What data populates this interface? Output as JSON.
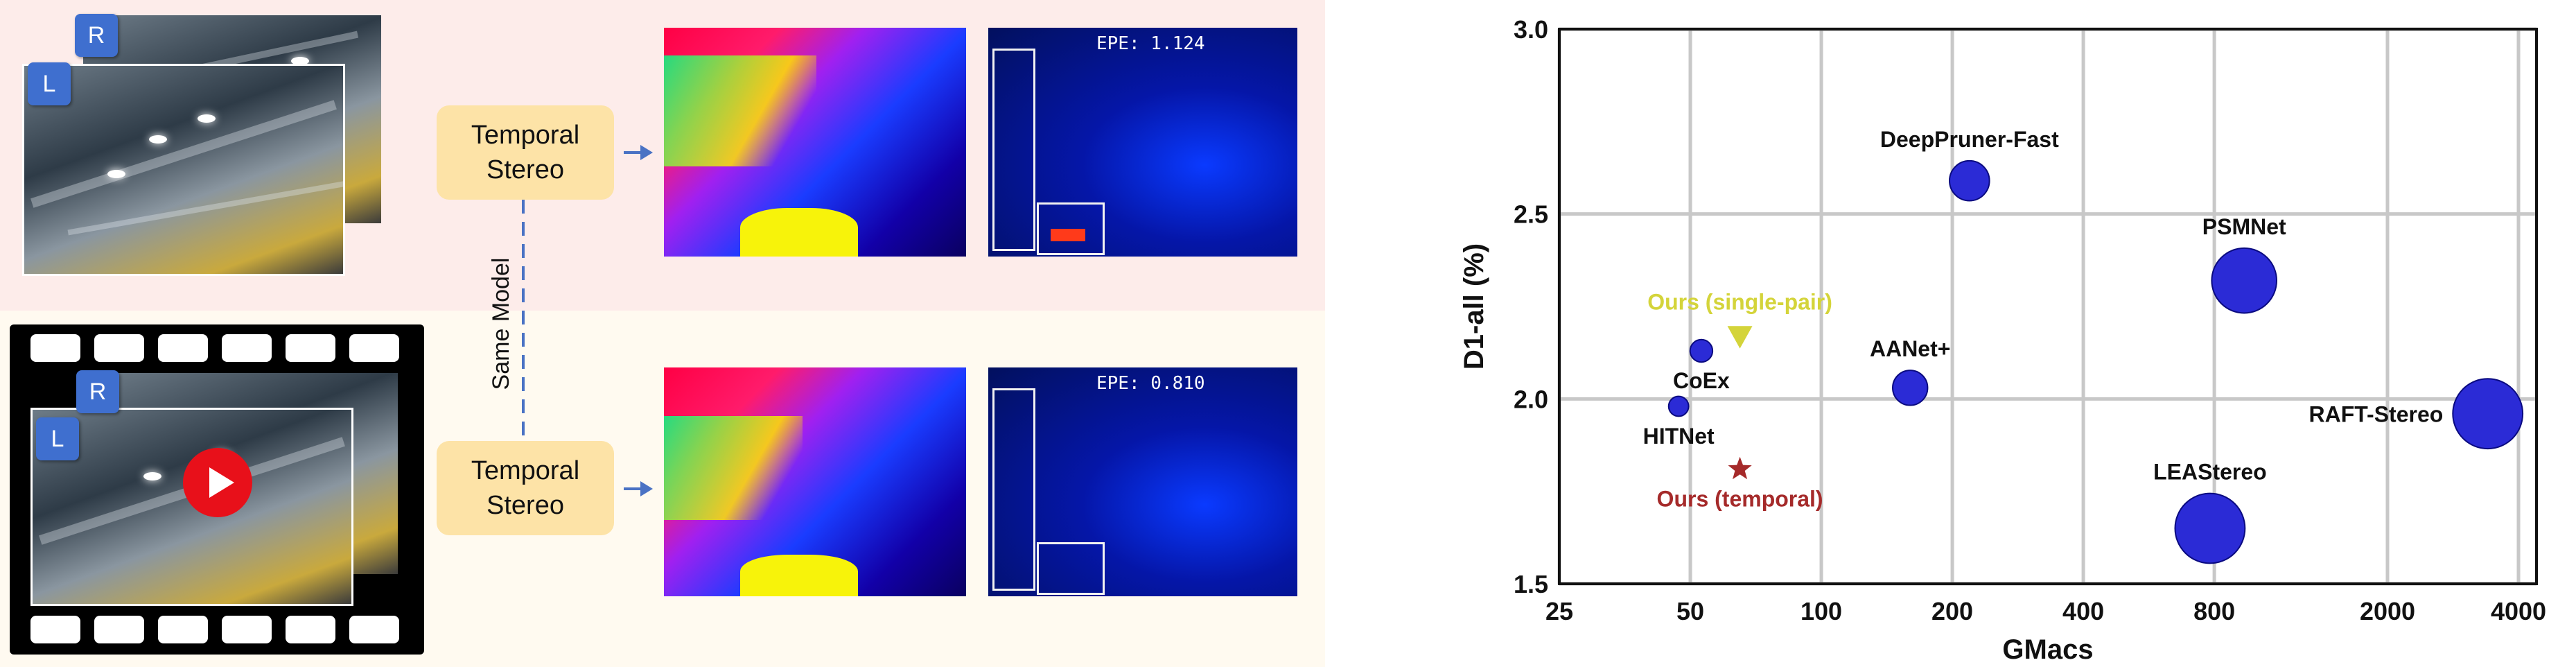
{
  "illustration": {
    "badge_r": "R",
    "badge_l": "L",
    "top_model": "Temporal\nStereo",
    "bottom_model": "Temporal\nStereo",
    "same_model_label": "Same Model",
    "epe_top": "EPE: 1.124",
    "epe_bottom": "EPE: 0.810"
  },
  "colors": {
    "accent_blue": "#2b2bd6",
    "ours_single_color": "#d4d43a",
    "ours_temporal_color": "#a52a2a",
    "box_fill": "#fde3a7",
    "top_bg": "#fdecea",
    "bottom_bg": "#fffaf0"
  },
  "chart_data": {
    "type": "scatter",
    "title": "",
    "xlabel": "GMacs",
    "ylabel": "D1-all (%)",
    "x_scale": "log",
    "xlim": [
      25,
      4400
    ],
    "ylim": [
      1.5,
      3.0
    ],
    "x_ticks": [
      25,
      50,
      100,
      200,
      400,
      800,
      2000,
      4000
    ],
    "x_tick_labels": [
      "25",
      "50",
      "100",
      "200",
      "400",
      "800",
      "2000",
      "4000"
    ],
    "y_ticks": [
      1.5,
      2.0,
      2.5,
      3.0
    ],
    "y_tick_labels": [
      "1.5",
      "2.0",
      "2.5",
      "3.0"
    ],
    "grid": true,
    "points": [
      {
        "label": "DeepPruner-Fast",
        "x": 219,
        "y": 2.59,
        "size": 1.6,
        "marker": "circle",
        "color": "#2b2bd6",
        "label_pos": "above"
      },
      {
        "label": "PSMNet",
        "x": 937,
        "y": 2.32,
        "size": 2.6,
        "marker": "circle",
        "color": "#2b2bd6",
        "label_pos": "above"
      },
      {
        "label": "AANet+",
        "x": 160,
        "y": 2.03,
        "size": 1.4,
        "marker": "circle",
        "color": "#2b2bd6",
        "label_pos": "above"
      },
      {
        "label": "CoEx",
        "x": 53,
        "y": 2.13,
        "size": 0.9,
        "marker": "circle",
        "color": "#2b2bd6",
        "label_pos": "below"
      },
      {
        "label": "HITNet",
        "x": 47,
        "y": 1.98,
        "size": 0.8,
        "marker": "circle",
        "color": "#2b2bd6",
        "label_pos": "below"
      },
      {
        "label": "RAFT-Stereo",
        "x": 3400,
        "y": 1.96,
        "size": 2.8,
        "marker": "circle",
        "color": "#2b2bd6",
        "label_pos": "left"
      },
      {
        "label": "LEAStereo",
        "x": 782,
        "y": 1.65,
        "size": 2.8,
        "marker": "circle",
        "color": "#2b2bd6",
        "label_pos": "above"
      },
      {
        "label": "Ours (single-pair)",
        "x": 65,
        "y": 2.17,
        "size": 1.0,
        "marker": "triangle-down",
        "color": "#d4d43a",
        "label_pos": "above"
      },
      {
        "label": "Ours (temporal)",
        "x": 65,
        "y": 1.81,
        "size": 1.0,
        "marker": "star",
        "color": "#a52a2a",
        "label_pos": "below"
      }
    ]
  }
}
